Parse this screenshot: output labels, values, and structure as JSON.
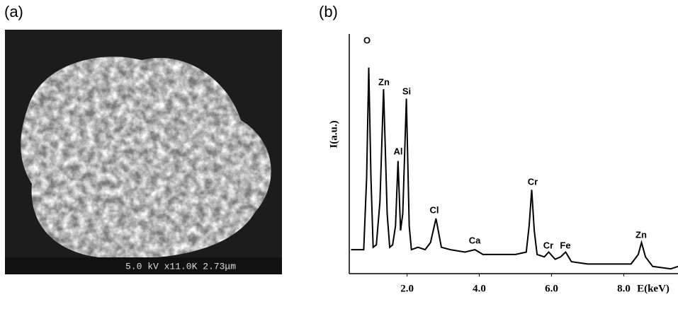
{
  "panels": [
    {
      "label": "(a)",
      "caption": "5.0 kV x11.0K 2.73μm"
    },
    {
      "label": "(b)"
    }
  ],
  "chart_data": {
    "type": "line",
    "xlabel": "E(keV)",
    "ylabel": "I(a.u.)",
    "x": [
      0.45,
      0.8,
      0.88,
      0.94,
      1.0,
      1.06,
      1.15,
      1.25,
      1.35,
      1.45,
      1.52,
      1.6,
      1.68,
      1.75,
      1.82,
      1.88,
      1.98,
      2.06,
      2.12,
      2.3,
      2.5,
      2.65,
      2.8,
      2.95,
      3.2,
      3.6,
      3.88,
      4.1,
      4.6,
      5.0,
      5.3,
      5.38,
      5.45,
      5.52,
      5.6,
      5.8,
      5.92,
      6.1,
      6.25,
      6.39,
      6.55,
      7.0,
      7.6,
      8.2,
      8.4,
      8.49,
      8.6,
      8.8,
      9.3,
      9.5
    ],
    "values": [
      10,
      10,
      40,
      86,
      40,
      11,
      12,
      30,
      77,
      25,
      11,
      12,
      20,
      47,
      18,
      25,
      73,
      20,
      10,
      11,
      10,
      13,
      23,
      11,
      10,
      9,
      10,
      8,
      8,
      8,
      9,
      20,
      35,
      18,
      8,
      7,
      9,
      6,
      7,
      9,
      5,
      4,
      4,
      4,
      8,
      13,
      7,
      3,
      2,
      3
    ],
    "color": "#000000",
    "xlim": [
      0.4,
      9.5
    ],
    "ylim": [
      0,
      100
    ],
    "xticks": [
      {
        "value": 2,
        "label": "2.0"
      },
      {
        "value": 4,
        "label": "4.0"
      },
      {
        "value": 6,
        "label": "6.0"
      },
      {
        "value": 8,
        "label": "8.0"
      }
    ],
    "annotations": [
      "O",
      "Zn",
      "Al",
      "Si",
      "Cl",
      "Ca",
      "Cr",
      "Cr",
      "Fe",
      "Zn"
    ]
  }
}
